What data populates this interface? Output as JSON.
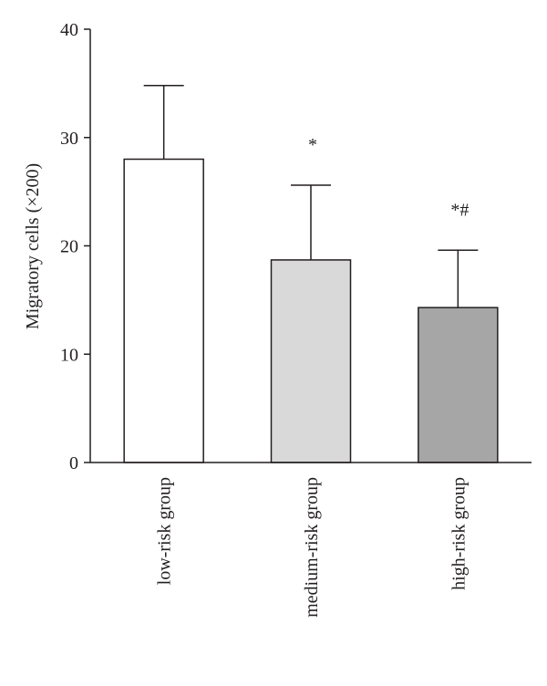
{
  "chart_data": {
    "type": "bar",
    "title": "",
    "xlabel": "",
    "ylabel": "Migratory cells (×200)",
    "ylim": [
      0,
      40
    ],
    "yticks": [
      0,
      10,
      20,
      30,
      40
    ],
    "grid": false,
    "categories": [
      "low-risk group",
      "medium-risk group",
      "high-risk group"
    ],
    "values": [
      28.0,
      18.7,
      14.3
    ],
    "error_upper": [
      34.8,
      25.6,
      19.6
    ],
    "annotations": [
      "",
      "*",
      "*#"
    ],
    "bar_colors": [
      "#ffffff",
      "#d9d9d9",
      "#a6a6a6"
    ],
    "edge_color": "#231f20"
  }
}
